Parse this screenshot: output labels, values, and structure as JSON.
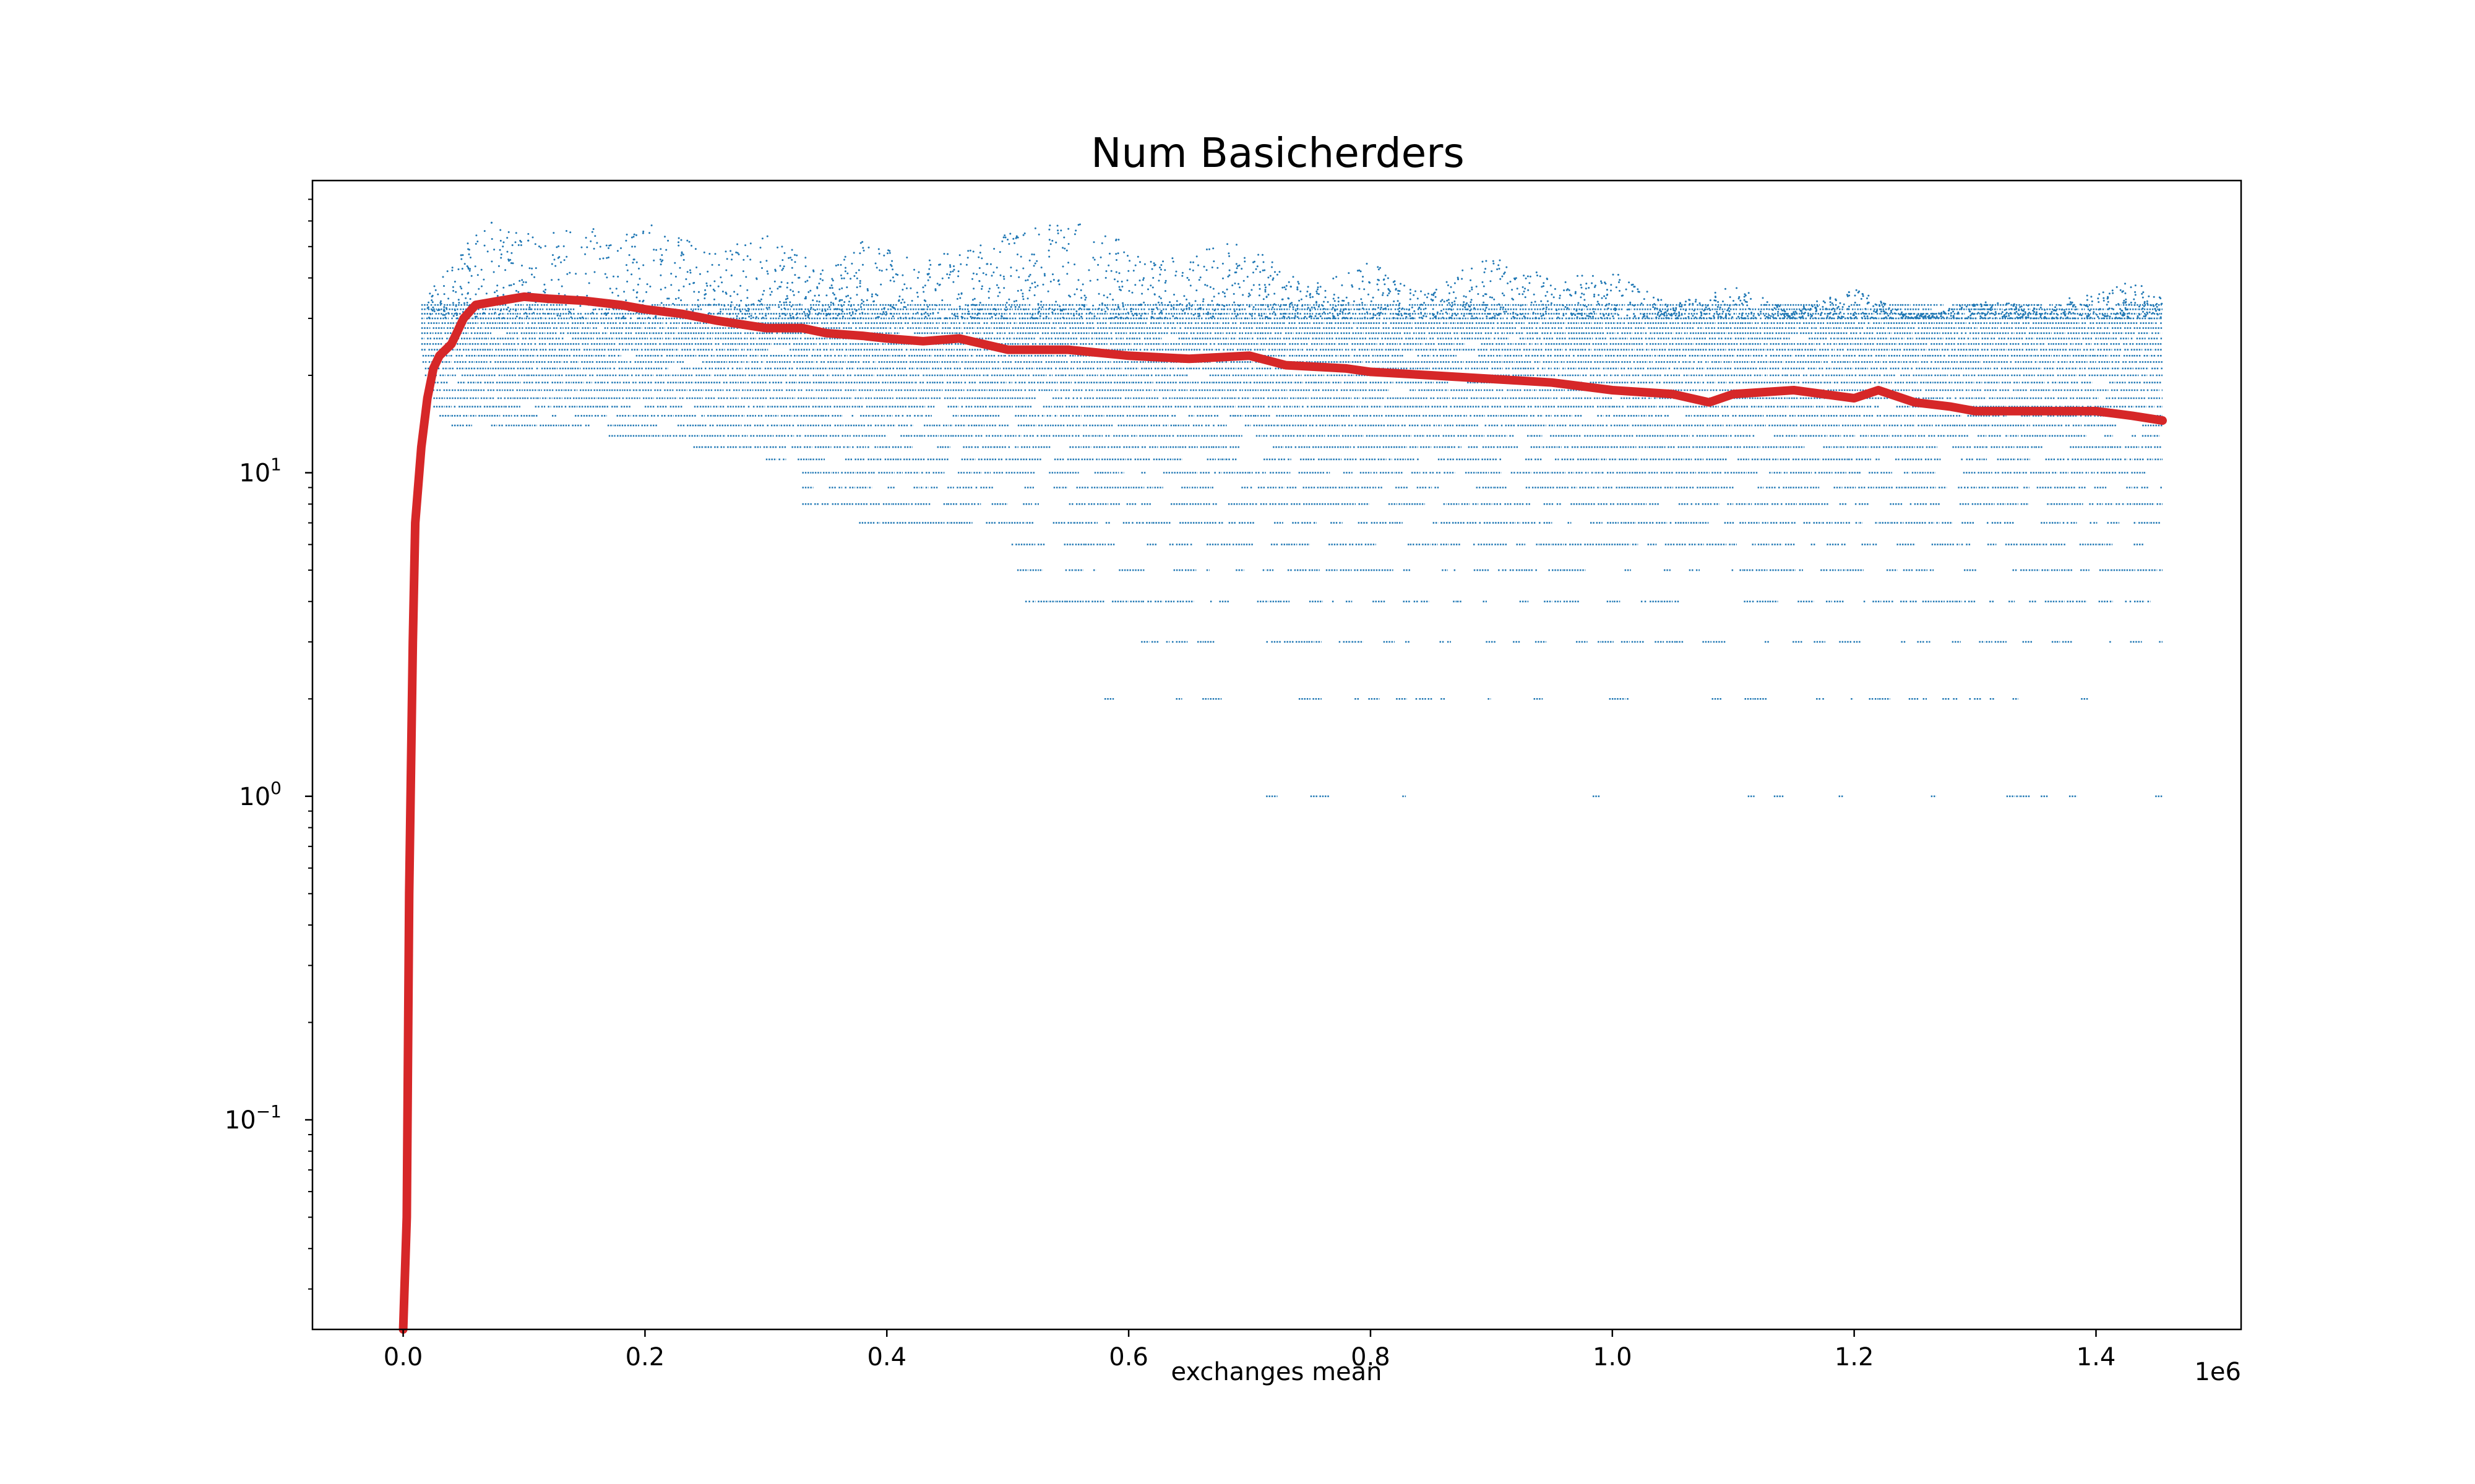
{
  "chart_data": {
    "type": "scatter",
    "title": "Num Basicherders",
    "xlabel": "exchanges mean",
    "ylabel": "",
    "x_offset_label": "1e6",
    "x_scale": "linear",
    "y_scale": "log",
    "xlim": [
      -75000,
      1520000
    ],
    "ylim": [
      0.0225,
      80
    ],
    "x_ticks": [
      {
        "value": 0,
        "label": "0.0"
      },
      {
        "value": 200000,
        "label": "0.2"
      },
      {
        "value": 400000,
        "label": "0.4"
      },
      {
        "value": 600000,
        "label": "0.6"
      },
      {
        "value": 800000,
        "label": "0.8"
      },
      {
        "value": 1000000,
        "label": "1.0"
      },
      {
        "value": 1200000,
        "label": "1.2"
      },
      {
        "value": 1400000,
        "label": "1.4"
      }
    ],
    "y_ticks": [
      {
        "value": 0.1,
        "base": "10",
        "exp": "−1"
      },
      {
        "value": 1,
        "base": "10",
        "exp": "0"
      },
      {
        "value": 10,
        "base": "10",
        "exp": "1"
      }
    ],
    "grid": false,
    "legend": "none",
    "colors": {
      "scatter": "#1f77b4",
      "mean_line": "#d62728"
    },
    "series": [
      {
        "kind": "scatter",
        "description_points": "individual runs, discrete integer counts",
        "x_range": [
          5000,
          1455000
        ],
        "levels": [
          {
            "y": 1,
            "x_start": 680000,
            "coverage": 0.25
          },
          {
            "y": 2,
            "x_start": 580000,
            "coverage": 0.4
          },
          {
            "y": 3,
            "x_start": 580000,
            "coverage": 0.55
          },
          {
            "y": 4,
            "x_start": 500000,
            "coverage": 0.65
          },
          {
            "y": 5,
            "x_start": 500000,
            "coverage": 0.7
          },
          {
            "y": 6,
            "x_start": 480000,
            "coverage": 0.75
          },
          {
            "y": 7,
            "x_start": 360000,
            "coverage": 0.8
          },
          {
            "y": 8,
            "x_start": 330000,
            "coverage": 0.85
          },
          {
            "y": 9,
            "x_start": 330000,
            "coverage": 0.85
          },
          {
            "y": 10,
            "x_start": 330000,
            "coverage": 0.9
          },
          {
            "y": 11,
            "x_start": 300000,
            "coverage": 0.9
          },
          {
            "y": 12,
            "x_start": 240000,
            "coverage": 0.9
          },
          {
            "y": 13,
            "x_start": 170000,
            "coverage": 0.92
          },
          {
            "y": 14,
            "x_start": 40000,
            "coverage": 0.95
          },
          {
            "y": 15,
            "x_start": 30000,
            "coverage": 0.95
          },
          {
            "y": 16,
            "x_start": 25000,
            "coverage": 0.97
          },
          {
            "y": 17,
            "x_start": 25000,
            "coverage": 0.97
          },
          {
            "y": 18,
            "x_start": 20000,
            "coverage": 0.98
          },
          {
            "y": 19,
            "x_start": 20000,
            "coverage": 0.98
          },
          {
            "y": 20,
            "x_start": 18000,
            "coverage": 0.98
          },
          {
            "y": 21,
            "x_start": 18000,
            "coverage": 0.99
          },
          {
            "y": 22,
            "x_start": 16000,
            "coverage": 0.99
          },
          {
            "y": 23,
            "x_start": 16000,
            "coverage": 0.99
          },
          {
            "y": 24,
            "x_start": 15000,
            "coverage": 0.99
          },
          {
            "y": 25,
            "x_start": 15000,
            "coverage": 0.99
          },
          {
            "y": 26,
            "x_start": 15000,
            "coverage": 0.99
          },
          {
            "y": 27,
            "x_start": 15000,
            "coverage": 0.99
          },
          {
            "y": 28,
            "x_start": 15000,
            "coverage": 0.99
          },
          {
            "y": 29,
            "x_start": 15000,
            "coverage": 0.99
          },
          {
            "y": 30,
            "x_start": 15000,
            "coverage": 0.98
          },
          {
            "y": 31,
            "x_start": 15000,
            "coverage": 0.97
          },
          {
            "y": 32,
            "x_start": 15000,
            "coverage": 0.95
          },
          {
            "y": 33,
            "x_start": 15000,
            "coverage": 0.9
          }
        ],
        "upper_envelope": [
          [
            20000,
            35
          ],
          [
            40000,
            45
          ],
          [
            60000,
            55
          ],
          [
            70000,
            62
          ],
          [
            100000,
            55
          ],
          [
            150000,
            58
          ],
          [
            180000,
            55
          ],
          [
            200000,
            60
          ],
          [
            260000,
            48
          ],
          [
            300000,
            55
          ],
          [
            350000,
            42
          ],
          [
            380000,
            52
          ],
          [
            430000,
            45
          ],
          [
            500000,
            55
          ],
          [
            560000,
            62
          ],
          [
            620000,
            45
          ],
          [
            690000,
            52
          ],
          [
            750000,
            38
          ],
          [
            800000,
            45
          ],
          [
            850000,
            36
          ],
          [
            900000,
            48
          ],
          [
            950000,
            40
          ],
          [
            1000000,
            42
          ],
          [
            1050000,
            33
          ],
          [
            1100000,
            38
          ],
          [
            1150000,
            32
          ],
          [
            1200000,
            37
          ],
          [
            1250000,
            30
          ],
          [
            1300000,
            34
          ],
          [
            1350000,
            33
          ],
          [
            1400000,
            36
          ],
          [
            1440000,
            40
          ],
          [
            1455000,
            34
          ]
        ]
      },
      {
        "kind": "line",
        "description_points": "mean across runs",
        "points": [
          [
            0,
            0.0225
          ],
          [
            3000,
            0.05
          ],
          [
            5000,
            0.5
          ],
          [
            8000,
            3
          ],
          [
            10000,
            7
          ],
          [
            15000,
            12
          ],
          [
            20000,
            17
          ],
          [
            25000,
            21
          ],
          [
            30000,
            23
          ],
          [
            40000,
            25
          ],
          [
            50000,
            30
          ],
          [
            60000,
            33
          ],
          [
            80000,
            34
          ],
          [
            100000,
            35
          ],
          [
            120000,
            34.5
          ],
          [
            150000,
            34
          ],
          [
            180000,
            33
          ],
          [
            200000,
            32
          ],
          [
            230000,
            31
          ],
          [
            260000,
            29.5
          ],
          [
            300000,
            28
          ],
          [
            330000,
            28
          ],
          [
            350000,
            27
          ],
          [
            380000,
            26.5
          ],
          [
            400000,
            26
          ],
          [
            430000,
            25.5
          ],
          [
            460000,
            26
          ],
          [
            500000,
            24
          ],
          [
            550000,
            24
          ],
          [
            600000,
            23
          ],
          [
            650000,
            22.5
          ],
          [
            700000,
            23
          ],
          [
            730000,
            21.5
          ],
          [
            780000,
            21
          ],
          [
            800000,
            20.5
          ],
          [
            850000,
            20
          ],
          [
            900000,
            19.5
          ],
          [
            950000,
            19
          ],
          [
            1000000,
            18
          ],
          [
            1050000,
            17.5
          ],
          [
            1080000,
            16.5
          ],
          [
            1100000,
            17.5
          ],
          [
            1150000,
            18
          ],
          [
            1200000,
            17
          ],
          [
            1220000,
            18
          ],
          [
            1250000,
            16.5
          ],
          [
            1280000,
            16
          ],
          [
            1300000,
            15.5
          ],
          [
            1350000,
            15.5
          ],
          [
            1400000,
            15.5
          ],
          [
            1430000,
            15
          ],
          [
            1455000,
            14.5
          ]
        ]
      }
    ]
  }
}
